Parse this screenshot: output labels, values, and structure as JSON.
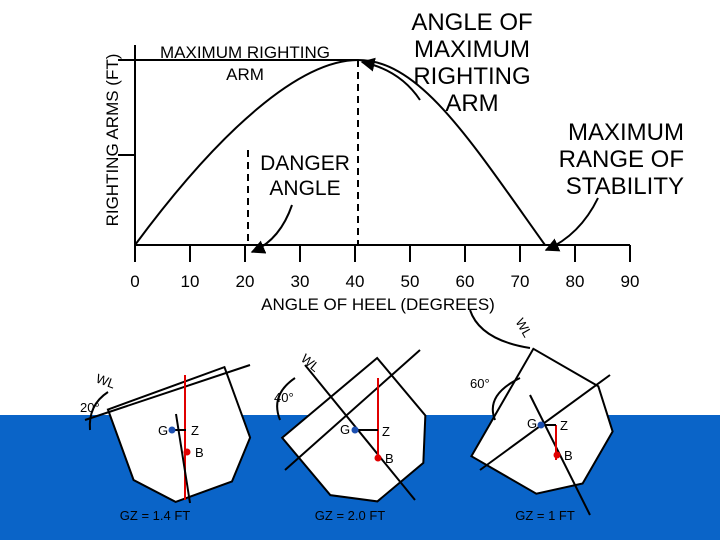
{
  "graph": {
    "y_axis_title": "RIGHTING ARMS (FT)",
    "x_axis_title": "ANGLE OF HEEL (DEGREES)",
    "x_tick_labels": [
      "0",
      "10",
      "20",
      "30",
      "40",
      "50",
      "60",
      "70",
      "80",
      "90"
    ],
    "max_righting_arm": [
      "MAXIMUM RIGHTING",
      "ARM"
    ],
    "angle_of_max": [
      "ANGLE OF",
      "MAXIMUM",
      "RIGHTING",
      "ARM"
    ],
    "max_range": [
      "MAXIMUM",
      "RANGE OF",
      "STABILITY"
    ],
    "danger_angle": [
      "DANGER",
      "ANGLE"
    ],
    "curve_waterline": "WL"
  },
  "ships": [
    {
      "angle": "20°",
      "wl": "WL",
      "g": "G",
      "z": "Z",
      "b": "B",
      "gz": "GZ = 1.4 FT"
    },
    {
      "angle": "40°",
      "wl": "WL",
      "g": "G",
      "z": "Z",
      "b": "B",
      "gz": "GZ = 2.0 FT"
    },
    {
      "angle": "60°",
      "g": "G",
      "z": "Z",
      "b": "B",
      "gz": "GZ = 1 FT"
    }
  ]
}
